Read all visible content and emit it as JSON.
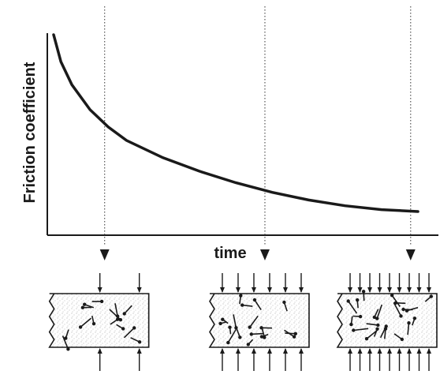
{
  "figure": {
    "ylabel": "Friction coefficient",
    "xlabel": "time"
  },
  "chart_data": {
    "type": "line",
    "title": "",
    "xlabel": "time",
    "ylabel": "Friction coefficient",
    "grid": false,
    "legend": "none",
    "series": [
      {
        "values_relative": [
          {
            "t": 0.0,
            "mu": 1.0
          },
          {
            "t": 0.02,
            "mu": 0.86
          },
          {
            "t": 0.05,
            "mu": 0.74
          },
          {
            "t": 0.1,
            "mu": 0.61
          },
          {
            "t": 0.15,
            "mu": 0.52
          },
          {
            "t": 0.2,
            "mu": 0.45
          },
          {
            "t": 0.3,
            "mu": 0.36
          },
          {
            "t": 0.4,
            "mu": 0.29
          },
          {
            "t": 0.5,
            "mu": 0.23
          },
          {
            "t": 0.6,
            "mu": 0.18
          },
          {
            "t": 0.7,
            "mu": 0.14
          },
          {
            "t": 0.8,
            "mu": 0.11
          },
          {
            "t": 0.9,
            "mu": 0.09
          },
          {
            "t": 1.0,
            "mu": 0.08
          }
        ]
      }
    ],
    "markers_at_t": [
      0.14,
      0.58,
      0.98
    ]
  },
  "samples": [
    {
      "stage": "early",
      "load_arrows": 2,
      "bonds": "sparse"
    },
    {
      "stage": "middle",
      "load_arrows": 6,
      "bonds": "moderate"
    },
    {
      "stage": "late",
      "load_arrows": 9,
      "bonds": "dense"
    }
  ],
  "colors": {
    "ink": "#1a1a1a",
    "guide": "#555555",
    "texture": "#b5b5b5",
    "background": "#ffffff"
  }
}
